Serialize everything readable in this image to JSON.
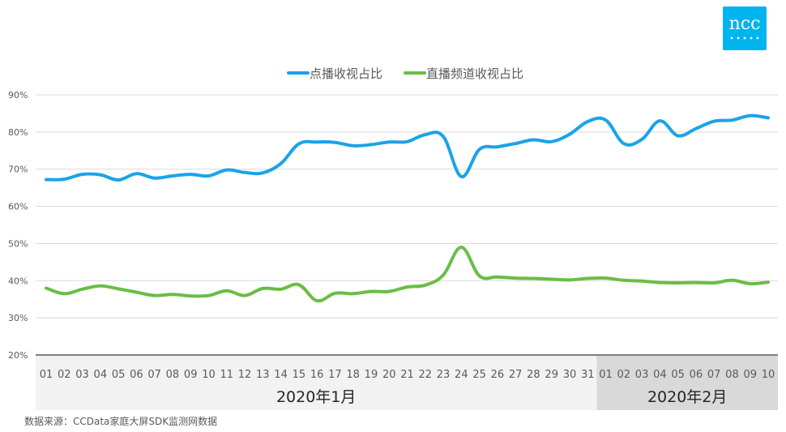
{
  "logo": {
    "text": "ncc",
    "color": "#00B4F0"
  },
  "source_note": "数据来源：CCData家庭大屏SDK监测网数据",
  "chart_data": {
    "type": "line",
    "x": [
      "01",
      "02",
      "03",
      "04",
      "05",
      "06",
      "07",
      "08",
      "09",
      "10",
      "11",
      "12",
      "13",
      "14",
      "15",
      "16",
      "17",
      "18",
      "19",
      "20",
      "21",
      "22",
      "23",
      "24",
      "25",
      "26",
      "27",
      "28",
      "29",
      "30",
      "31",
      "01",
      "02",
      "03",
      "04",
      "05",
      "06",
      "07",
      "08",
      "09",
      "10"
    ],
    "x_groups": [
      {
        "label": "2020年1月",
        "count": 31,
        "shade": "#f2f2f2"
      },
      {
        "label": "2020年2月",
        "count": 10,
        "shade": "#d9d9d9"
      }
    ],
    "yticks": [
      "20%",
      "30%",
      "40%",
      "50%",
      "60%",
      "70%",
      "80%",
      "90%"
    ],
    "ylim": [
      20,
      90
    ],
    "grid": true,
    "legend_position": "top-center",
    "series": [
      {
        "name": "点播收视占比",
        "color": "#1aa3e8",
        "values": [
          67.2,
          67.3,
          68.6,
          68.5,
          67.1,
          68.8,
          67.6,
          68.2,
          68.6,
          68.2,
          69.8,
          69.1,
          69.0,
          71.5,
          76.8,
          77.3,
          77.2,
          76.3,
          76.6,
          77.3,
          77.4,
          79.3,
          78.8,
          68.0,
          75.3,
          76.0,
          76.9,
          77.9,
          77.4,
          79.4,
          82.8,
          83.2,
          76.9,
          78.0,
          83.0,
          79.0,
          80.9,
          82.9,
          83.2,
          84.4,
          83.8
        ]
      },
      {
        "name": "直播频道收视占比",
        "color": "#6abd45",
        "values": [
          38.0,
          36.5,
          37.7,
          38.6,
          37.8,
          36.9,
          36.0,
          36.3,
          35.9,
          36.0,
          37.3,
          36.0,
          37.9,
          37.7,
          38.9,
          34.6,
          36.6,
          36.5,
          37.1,
          37.1,
          38.3,
          38.8,
          41.5,
          49.0,
          41.3,
          41.0,
          40.7,
          40.6,
          40.4,
          40.2,
          40.6,
          40.7,
          40.1,
          39.9,
          39.5,
          39.4,
          39.5,
          39.4,
          40.1,
          39.2,
          39.6
        ]
      }
    ]
  }
}
